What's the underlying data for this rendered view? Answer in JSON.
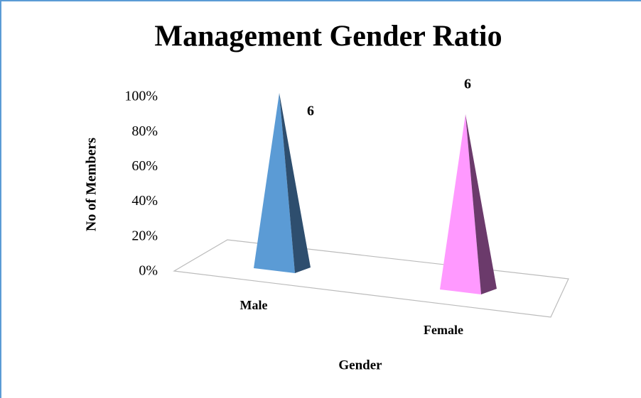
{
  "chart_data": {
    "type": "pyramid3d",
    "stacking": "percent",
    "title": "Management Gender Ratio",
    "xlabel": "Gender",
    "ylabel": "No of Members",
    "categories": [
      "Male",
      "Female"
    ],
    "series": [
      {
        "name": null,
        "colors": [
          "#5b9bd5",
          "#ff99ff"
        ],
        "values": [
          6,
          6
        ]
      }
    ],
    "ylim": [
      0,
      100
    ],
    "yticks": [
      {
        "value": 0,
        "label": "0%"
      },
      {
        "value": 20,
        "label": "20%"
      },
      {
        "value": 40,
        "label": "40%"
      },
      {
        "value": 60,
        "label": "60%"
      },
      {
        "value": 80,
        "label": "80%"
      },
      {
        "value": 100,
        "label": "100%"
      }
    ]
  }
}
